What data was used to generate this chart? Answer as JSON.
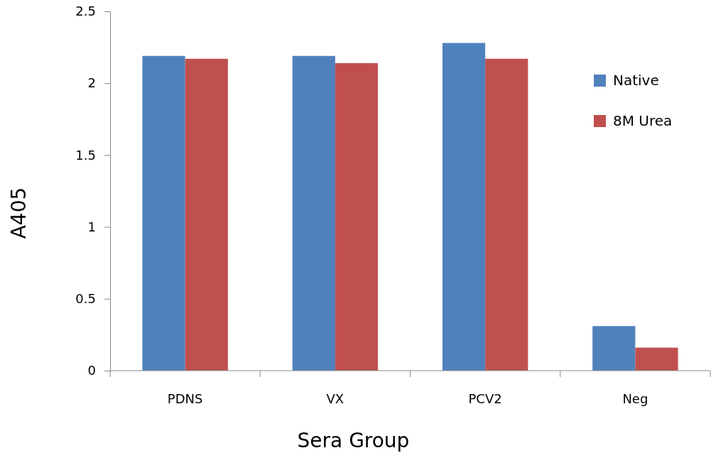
{
  "chart_data": {
    "type": "bar",
    "xlabel": "Sera Group",
    "ylabel": "A405",
    "categories": [
      "PDNS",
      "VX",
      "PCV2",
      "Neg"
    ],
    "series": [
      {
        "name": "Native",
        "color": "#4f81bd",
        "values": [
          2.19,
          2.19,
          2.28,
          0.31
        ]
      },
      {
        "name": "8M Urea",
        "color": "#c0504d",
        "values": [
          2.17,
          2.14,
          2.17,
          0.16
        ]
      }
    ],
    "ylim": [
      0,
      2.5
    ],
    "yticks": [
      0,
      0.5,
      1,
      1.5,
      2,
      2.5
    ],
    "grid": false,
    "legend": "top right"
  }
}
